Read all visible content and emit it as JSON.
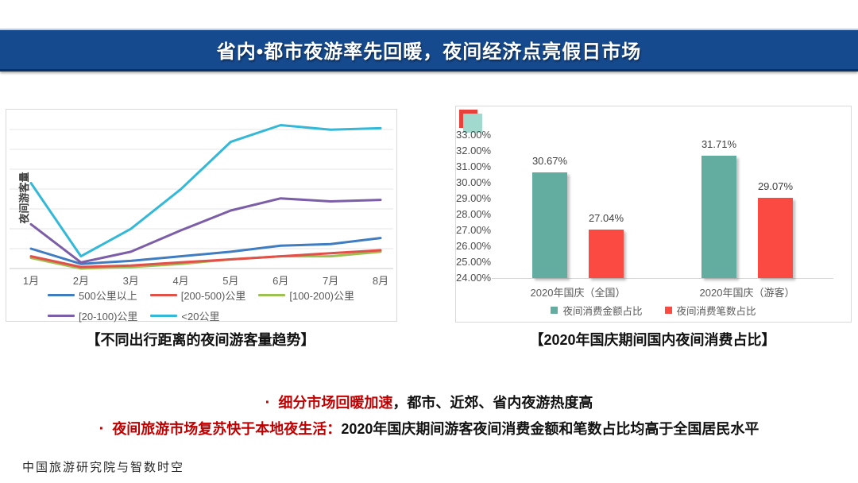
{
  "header": {
    "title": "省内•都市夜游率先回暖，夜间经济点亮假日市场"
  },
  "colors": {
    "header_bg": "#164a8e",
    "header_text": "#ffffff",
    "accent_red": "#c00000",
    "box_border": "#d9d9d9",
    "axis_text": "#595959",
    "bar_teal": "#63aca0",
    "bar_red": "#fb4a42",
    "corner_teal": "#a2d9cf",
    "corner_red": "#e8403a"
  },
  "chart_data": [
    {
      "id": "night-visitor-trend",
      "type": "line",
      "title": "【不同出行距离的夜间游客量趋势】",
      "ylabel": "夜间游客量",
      "xlabel": "",
      "categories": [
        "1月",
        "2月",
        "3月",
        "4月",
        "5月",
        "6月",
        "7月",
        "8月"
      ],
      "series": [
        {
          "name": "500公里以上",
          "color": "#3f7cc0",
          "values": [
            13,
            3,
            5,
            8,
            11,
            15,
            16,
            20
          ]
        },
        {
          "name": "[200-500)公里",
          "color": "#e2504a",
          "values": [
            8,
            1,
            2,
            4,
            6,
            8,
            10,
            12
          ]
        },
        {
          "name": "[100-200)公里",
          "color": "#9dc052",
          "values": [
            7,
            0,
            1,
            3,
            6,
            8,
            8,
            11
          ]
        },
        {
          "name": "[20-100)公里",
          "color": "#7b5ea7",
          "values": [
            29,
            4,
            11,
            25,
            38,
            46,
            44,
            45
          ]
        },
        {
          "name": "<20公里",
          "color": "#33b8d8",
          "values": [
            56,
            8,
            26,
            52,
            83,
            94,
            91,
            92
          ]
        }
      ],
      "ylim": [
        0,
        100
      ],
      "grid": true,
      "legend_position": "bottom",
      "note": "y values are relative visitor-volume index (unlabeled axis), estimated from plot"
    },
    {
      "id": "national-day-night-consumption",
      "type": "bar",
      "title": "【2020年国庆期间国内夜间消费占比】",
      "categories": [
        "2020年国庆（全国）",
        "2020年国庆（游客）"
      ],
      "series": [
        {
          "name": "夜间消费金额占比",
          "color": "#63aca0",
          "values": [
            30.67,
            31.71
          ],
          "labels": [
            "30.67%",
            "31.71%"
          ]
        },
        {
          "name": "夜间消费笔数占比",
          "color": "#fb4a42",
          "values": [
            27.04,
            29.07
          ],
          "labels": [
            "27.04%",
            "29.07%"
          ]
        }
      ],
      "ylim": [
        24,
        33
      ],
      "yticks": [
        "33.00%",
        "32.00%",
        "31.00%",
        "30.00%",
        "29.00%",
        "28.00%",
        "27.00%",
        "26.00%",
        "25.00%",
        "24.00%"
      ],
      "grid": false,
      "legend_position": "bottom"
    }
  ],
  "bullets": [
    {
      "marker": "·",
      "highlight": "细分市场回暖加速",
      "rest": "，都市、近郊、省内夜游热度高"
    },
    {
      "marker": "·",
      "highlight": "夜间旅游市场复苏快于本地夜生活：",
      "rest": "2020年国庆期间游客夜间消费金额和笔数占比均高于全国居民水平"
    }
  ],
  "footer": {
    "credit": "中国旅游研究院与智数时空"
  }
}
